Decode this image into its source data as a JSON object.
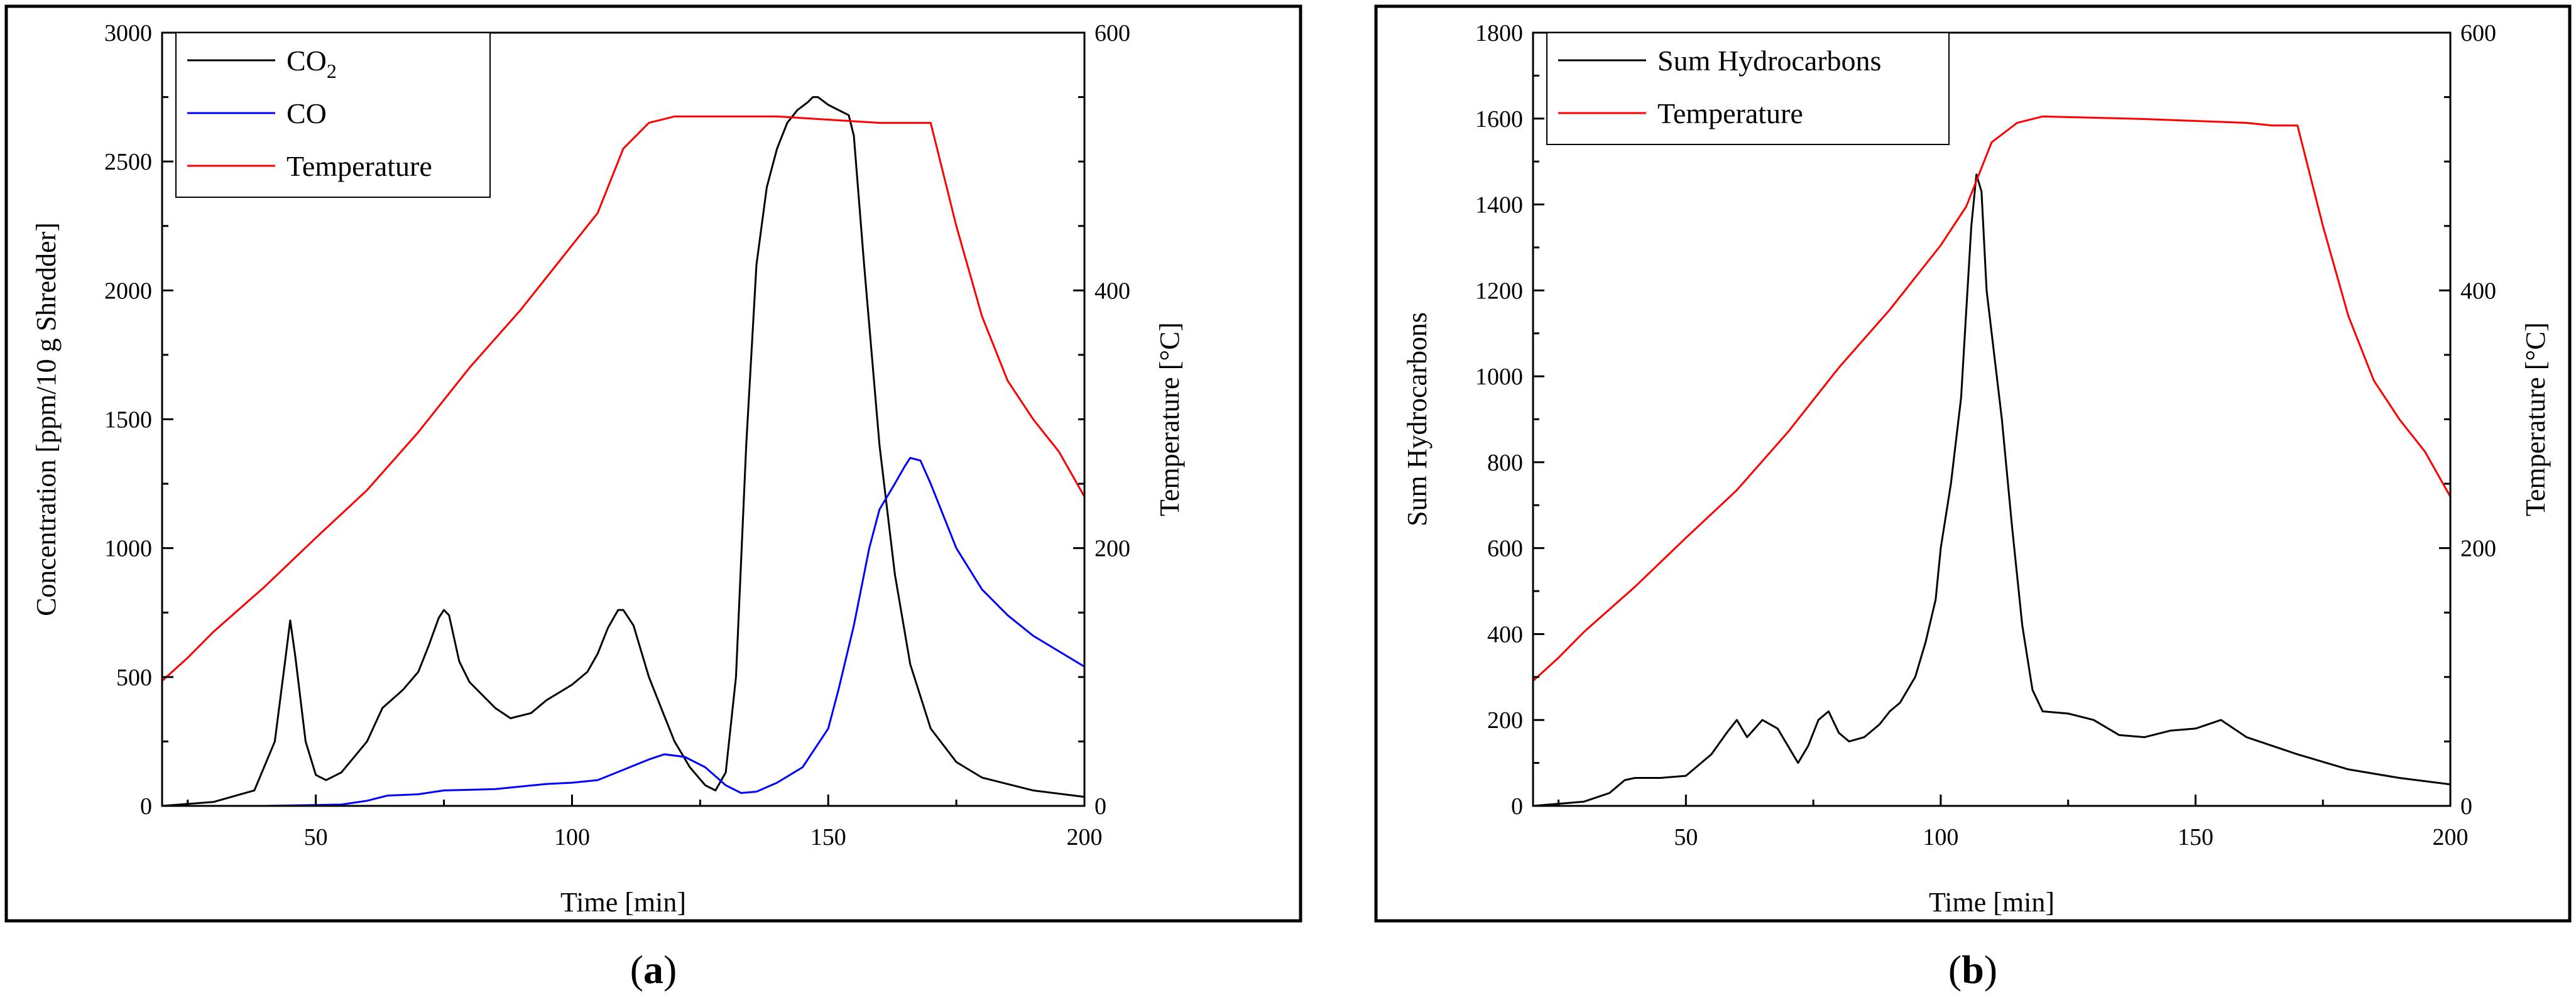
{
  "chart_data": [
    {
      "type": "line",
      "xlabel": "Time [min]",
      "ylabel": "Concentration [ppm/10 g Shredder]",
      "y2label": "Temperature [°C]",
      "xlim": [
        20,
        200
      ],
      "ylim": [
        0,
        3000
      ],
      "y2lim": [
        0,
        600
      ],
      "xticks": [
        50,
        100,
        150,
        200
      ],
      "yticks": [
        0,
        500,
        1000,
        1500,
        2000,
        2500,
        3000
      ],
      "y2ticks": [
        0,
        200,
        400,
        600
      ],
      "legend_position": "top-left",
      "caption": "a",
      "series": [
        {
          "name": "CO2",
          "label_main": "CO",
          "label_sub": "2",
          "axis": "left",
          "color": "#000000",
          "x": [
            20,
            30,
            38,
            42,
            44,
            45,
            46,
            48,
            50,
            52,
            55,
            60,
            63,
            67,
            70,
            72,
            74,
            75,
            76,
            78,
            80,
            85,
            88,
            92,
            95,
            100,
            103,
            105,
            107,
            109,
            110,
            112,
            115,
            118,
            120,
            123,
            126,
            128,
            130,
            132,
            134,
            136,
            138,
            140,
            142,
            144,
            146,
            147,
            148,
            150,
            152,
            154,
            155,
            157,
            160,
            163,
            166,
            170,
            175,
            180,
            190,
            200
          ],
          "y": [
            0,
            15,
            60,
            250,
            560,
            720,
            580,
            250,
            120,
            100,
            130,
            250,
            380,
            450,
            520,
            620,
            730,
            760,
            740,
            560,
            480,
            380,
            340,
            360,
            410,
            470,
            520,
            590,
            690,
            760,
            760,
            700,
            500,
            350,
            250,
            150,
            80,
            60,
            130,
            500,
            1400,
            2100,
            2400,
            2550,
            2650,
            2700,
            2730,
            2750,
            2750,
            2720,
            2700,
            2680,
            2600,
            2100,
            1400,
            900,
            550,
            300,
            170,
            110,
            60,
            35
          ]
        },
        {
          "name": "CO",
          "label_main": "CO",
          "axis": "left",
          "color": "#0000ff",
          "x": [
            20,
            40,
            55,
            60,
            64,
            70,
            75,
            85,
            95,
            100,
            105,
            110,
            115,
            118,
            122,
            126,
            130,
            133,
            136,
            140,
            145,
            150,
            152,
            155,
            158,
            160,
            163,
            165,
            166,
            168,
            170,
            175,
            180,
            185,
            190,
            200
          ],
          "y": [
            0,
            0,
            5,
            20,
            40,
            45,
            60,
            65,
            85,
            90,
            100,
            140,
            180,
            200,
            190,
            150,
            80,
            50,
            55,
            90,
            150,
            300,
            450,
            700,
            1000,
            1150,
            1250,
            1320,
            1350,
            1340,
            1250,
            1000,
            840,
            740,
            660,
            540
          ]
        },
        {
          "name": "Temperature",
          "label_main": "Temperature",
          "axis": "right",
          "color": "#ff0000",
          "x": [
            20,
            25,
            30,
            40,
            50,
            60,
            70,
            80,
            90,
            100,
            105,
            110,
            115,
            120,
            140,
            160,
            165,
            170,
            175,
            180,
            185,
            190,
            195,
            200
          ],
          "y": [
            97,
            115,
            135,
            170,
            208,
            245,
            290,
            340,
            385,
            435,
            460,
            510,
            530,
            535,
            535,
            530,
            530,
            530,
            450,
            380,
            330,
            300,
            275,
            240
          ]
        }
      ]
    },
    {
      "type": "line",
      "xlabel": "Time [min]",
      "ylabel": "Sum Hydrocarbons",
      "y2label": "Temperature [°C]",
      "xlim": [
        20,
        200
      ],
      "ylim": [
        0,
        1800
      ],
      "y2lim": [
        0,
        600
      ],
      "xticks": [
        50,
        100,
        150,
        200
      ],
      "yticks": [
        0,
        200,
        400,
        600,
        800,
        1000,
        1200,
        1400,
        1600,
        1800
      ],
      "y2ticks": [
        0,
        200,
        400,
        600
      ],
      "legend_position": "top-left",
      "caption": "b",
      "series": [
        {
          "name": "Sum Hydrocarbons",
          "label_main": "Sum Hydrocarbons",
          "axis": "left",
          "color": "#000000",
          "x": [
            20,
            30,
            35,
            38,
            40,
            45,
            50,
            55,
            58,
            60,
            62,
            65,
            68,
            70,
            72,
            74,
            76,
            78,
            80,
            82,
            85,
            88,
            90,
            92,
            95,
            97,
            99,
            100,
            102,
            104,
            105,
            106,
            107,
            108,
            109,
            110,
            111,
            112,
            114,
            116,
            118,
            120,
            125,
            130,
            135,
            140,
            145,
            150,
            155,
            160,
            170,
            180,
            190,
            200
          ],
          "y": [
            0,
            10,
            30,
            60,
            65,
            65,
            70,
            120,
            170,
            200,
            160,
            200,
            180,
            140,
            100,
            140,
            200,
            220,
            170,
            150,
            160,
            190,
            220,
            240,
            300,
            380,
            480,
            600,
            750,
            950,
            1150,
            1350,
            1470,
            1430,
            1200,
            1100,
            1000,
            900,
            650,
            420,
            270,
            220,
            215,
            200,
            165,
            160,
            175,
            180,
            200,
            160,
            120,
            85,
            65,
            50
          ]
        },
        {
          "name": "Temperature",
          "label_main": "Temperature",
          "axis": "right",
          "color": "#ff0000",
          "x": [
            20,
            25,
            30,
            40,
            50,
            60,
            70,
            80,
            90,
            100,
            105,
            110,
            115,
            120,
            140,
            160,
            165,
            170,
            175,
            180,
            185,
            190,
            195,
            200
          ],
          "y": [
            97,
            115,
            135,
            170,
            208,
            245,
            290,
            340,
            385,
            435,
            465,
            515,
            530,
            535,
            533,
            530,
            528,
            528,
            450,
            380,
            330,
            300,
            275,
            240
          ]
        }
      ]
    }
  ]
}
